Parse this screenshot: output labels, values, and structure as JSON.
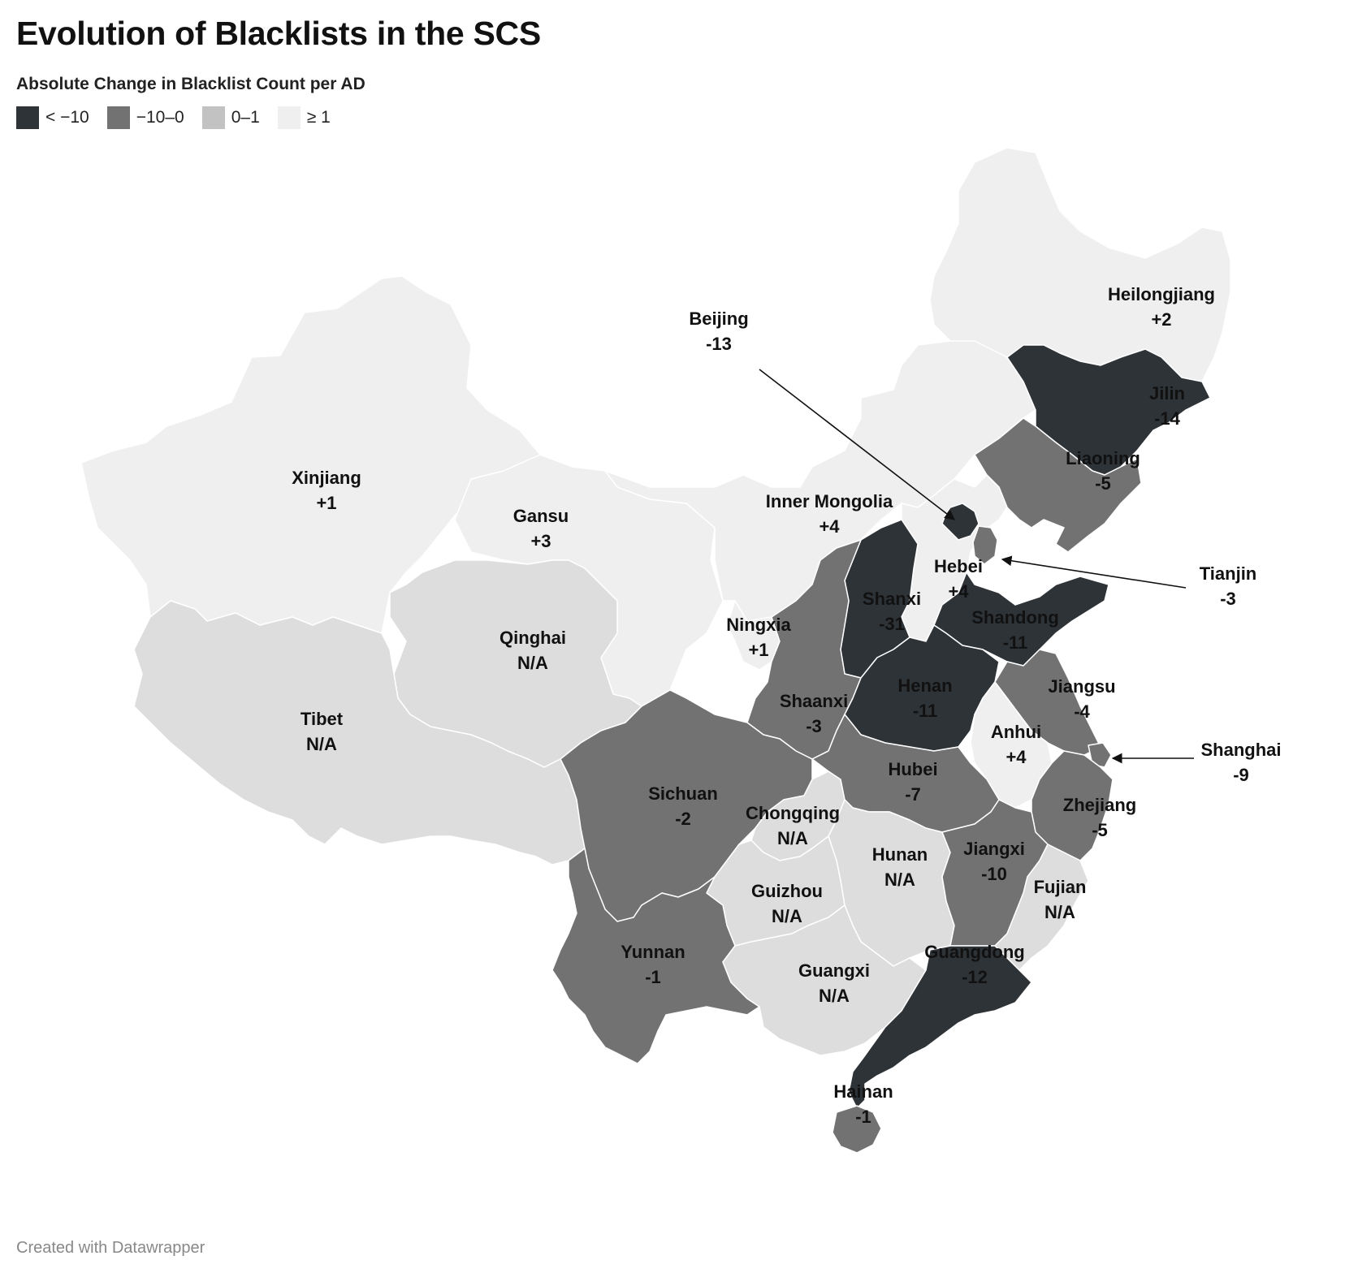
{
  "title": "Evolution of Blacklists in the SCS",
  "legend": {
    "title": "Absolute Change in Blacklist Count per AD",
    "items": [
      {
        "label": "< −10",
        "color": "#2e3338"
      },
      {
        "label": "−10–0",
        "color": "#727272"
      },
      {
        "label": "0–1",
        "color": "#c2c2c2"
      },
      {
        "label": "≥ 1",
        "color": "#efefef"
      }
    ]
  },
  "colors": {
    "na": "#dddddd",
    "border": "#ffffff",
    "label": "#111111"
  },
  "regions": [
    {
      "id": "xinjiang",
      "name": "Xinjiang",
      "value": "+1",
      "fill": "#efefef"
    },
    {
      "id": "tibet",
      "name": "Tibet",
      "value": "N/A",
      "fill": "#dddddd"
    },
    {
      "id": "qinghai",
      "name": "Qinghai",
      "value": "N/A",
      "fill": "#dddddd"
    },
    {
      "id": "gansu",
      "name": "Gansu",
      "value": "+3",
      "fill": "#efefef"
    },
    {
      "id": "inner-mongolia",
      "name": "Inner Mongolia",
      "value": "+4",
      "fill": "#efefef"
    },
    {
      "id": "heilongjiang",
      "name": "Heilongjiang",
      "value": "+2",
      "fill": "#efefef"
    },
    {
      "id": "jilin",
      "name": "Jilin",
      "value": "-14",
      "fill": "#2e3338"
    },
    {
      "id": "liaoning",
      "name": "Liaoning",
      "value": "-5",
      "fill": "#727272"
    },
    {
      "id": "beijing",
      "name": "Beijing",
      "value": "-13",
      "fill": "#2e3338"
    },
    {
      "id": "tianjin",
      "name": "Tianjin",
      "value": "-3",
      "fill": "#727272"
    },
    {
      "id": "hebei",
      "name": "Hebei",
      "value": "+4",
      "fill": "#efefef"
    },
    {
      "id": "shanxi",
      "name": "Shanxi",
      "value": "-31",
      "fill": "#2e3338"
    },
    {
      "id": "shandong",
      "name": "Shandong",
      "value": "-11",
      "fill": "#2e3338"
    },
    {
      "id": "ningxia",
      "name": "Ningxia",
      "value": "+1",
      "fill": "#efefef"
    },
    {
      "id": "shaanxi",
      "name": "Shaanxi",
      "value": "-3",
      "fill": "#727272"
    },
    {
      "id": "henan",
      "name": "Henan",
      "value": "-11",
      "fill": "#2e3338"
    },
    {
      "id": "jiangsu",
      "name": "Jiangsu",
      "value": "-4",
      "fill": "#727272"
    },
    {
      "id": "anhui",
      "name": "Anhui",
      "value": "+4",
      "fill": "#efefef"
    },
    {
      "id": "shanghai",
      "name": "Shanghai",
      "value": "-9",
      "fill": "#727272"
    },
    {
      "id": "sichuan",
      "name": "Sichuan",
      "value": "-2",
      "fill": "#727272"
    },
    {
      "id": "chongqing",
      "name": "Chongqing",
      "value": "N/A",
      "fill": "#dddddd"
    },
    {
      "id": "hubei",
      "name": "Hubei",
      "value": "-7",
      "fill": "#727272"
    },
    {
      "id": "zhejiang",
      "name": "Zhejiang",
      "value": "-5",
      "fill": "#727272"
    },
    {
      "id": "hunan",
      "name": "Hunan",
      "value": "N/A",
      "fill": "#dddddd"
    },
    {
      "id": "jiangxi",
      "name": "Jiangxi",
      "value": "-10",
      "fill": "#727272"
    },
    {
      "id": "fujian",
      "name": "Fujian",
      "value": "N/A",
      "fill": "#dddddd"
    },
    {
      "id": "guizhou",
      "name": "Guizhou",
      "value": "N/A",
      "fill": "#dddddd"
    },
    {
      "id": "yunnan",
      "name": "Yunnan",
      "value": "-1",
      "fill": "#727272"
    },
    {
      "id": "guangxi",
      "name": "Guangxi",
      "value": "N/A",
      "fill": "#dddddd"
    },
    {
      "id": "guangdong",
      "name": "Guangdong",
      "value": "-12",
      "fill": "#2e3338"
    },
    {
      "id": "hainan",
      "name": "Hainan",
      "value": "-1",
      "fill": "#727272"
    }
  ],
  "credit": "Created with Datawrapper"
}
